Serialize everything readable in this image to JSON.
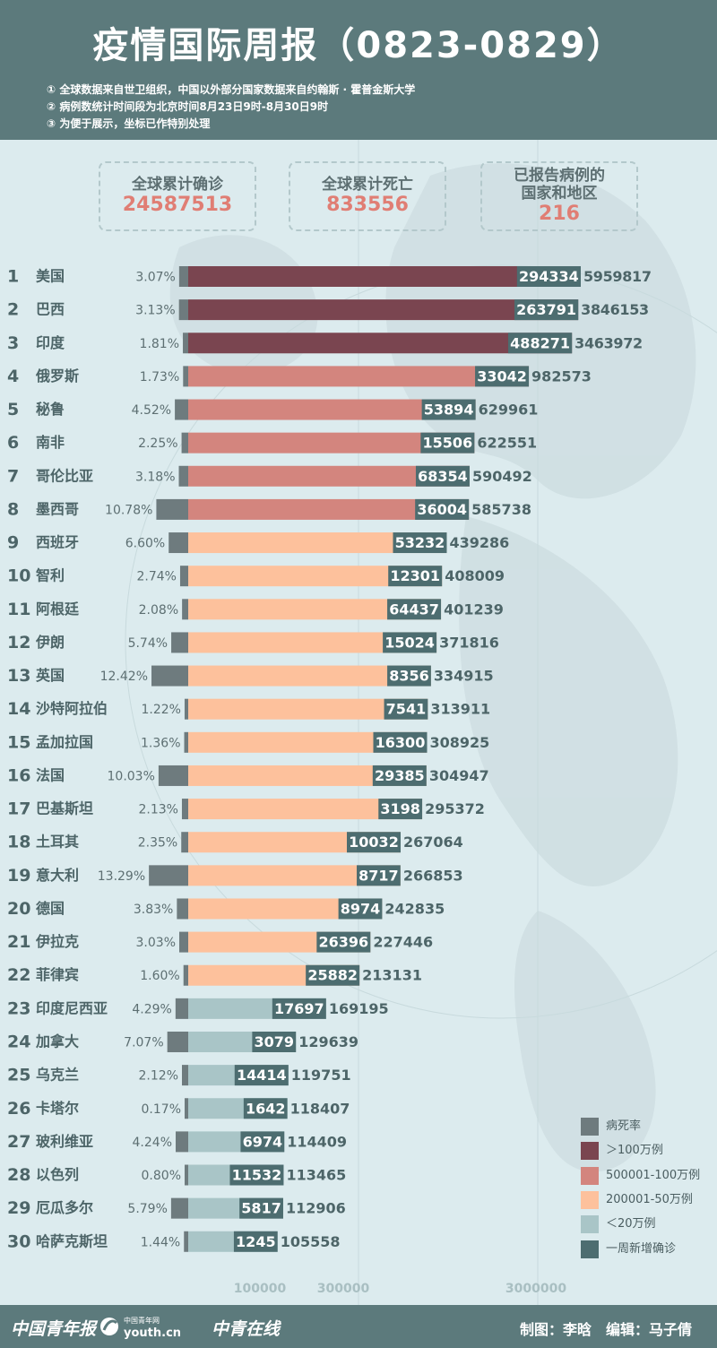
{
  "title": "疫情国际周报（0823-0829）",
  "notes": [
    "① 全球数据来自世卫组织，中国以外部分国家数据来自约翰斯 · 霍普金斯大学",
    "② 病例数统计时间段为北京时间8月23日9时-8月30日9时",
    "③ 为便于展示，坐标已作特别处理"
  ],
  "stats": [
    {
      "label": "全球累计确诊",
      "value": "24587513"
    },
    {
      "label": "全球累计死亡",
      "value": "833556"
    },
    {
      "label": "已报告病例的国家和地区",
      "label_lines": [
        "已报告病例的",
        "国家和地区"
      ],
      "value": "216"
    }
  ],
  "colors": {
    "header": "#5c7a7c",
    "death_rate": "#6e7b7e",
    "tier_over_1m": "#7a4550",
    "tier_500k_1m": "#d3857e",
    "tier_200k_500k": "#fdc19c",
    "tier_under_200k": "#a9c5c7",
    "weekly_new": "#4d6d70",
    "number_text": "#4d6568",
    "stat_value": "#e07e74"
  },
  "chart_data": {
    "type": "bar",
    "title": "",
    "xscale": "piecewise-linear",
    "xticks": [
      100000,
      300000,
      3000000
    ],
    "xtick_labels": [
      "100000",
      "300000",
      "3000000"
    ],
    "countries": [
      {
        "rank": "1",
        "name": "美国",
        "death_rate": "3.07%",
        "weekly_new": 294334,
        "total": 5959817,
        "tier": "tier_over_1m"
      },
      {
        "rank": "2",
        "name": "巴西",
        "death_rate": "3.13%",
        "weekly_new": 263791,
        "total": 3846153,
        "tier": "tier_over_1m"
      },
      {
        "rank": "3",
        "name": "印度",
        "death_rate": "1.81%",
        "weekly_new": 488271,
        "total": 3463972,
        "tier": "tier_over_1m"
      },
      {
        "rank": "4",
        "name": "俄罗斯",
        "death_rate": "1.73%",
        "weekly_new": 33042,
        "total": 982573,
        "tier": "tier_500k_1m"
      },
      {
        "rank": "5",
        "name": "秘鲁",
        "death_rate": "4.52%",
        "weekly_new": 53894,
        "total": 629961,
        "tier": "tier_500k_1m"
      },
      {
        "rank": "6",
        "name": "南非",
        "death_rate": "2.25%",
        "weekly_new": 15506,
        "total": 622551,
        "tier": "tier_500k_1m"
      },
      {
        "rank": "7",
        "name": "哥伦比亚",
        "death_rate": "3.18%",
        "weekly_new": 68354,
        "total": 590492,
        "tier": "tier_500k_1m"
      },
      {
        "rank": "8",
        "name": "墨西哥",
        "death_rate": "10.78%",
        "weekly_new": 36004,
        "total": 585738,
        "tier": "tier_500k_1m"
      },
      {
        "rank": "9",
        "name": "西班牙",
        "death_rate": "6.60%",
        "weekly_new": 53232,
        "total": 439286,
        "tier": "tier_200k_500k"
      },
      {
        "rank": "10",
        "name": "智利",
        "death_rate": "2.74%",
        "weekly_new": 12301,
        "total": 408009,
        "tier": "tier_200k_500k"
      },
      {
        "rank": "11",
        "name": "阿根廷",
        "death_rate": "2.08%",
        "weekly_new": 64437,
        "total": 401239,
        "tier": "tier_200k_500k"
      },
      {
        "rank": "12",
        "name": "伊朗",
        "death_rate": "5.74%",
        "weekly_new": 15024,
        "total": 371816,
        "tier": "tier_200k_500k"
      },
      {
        "rank": "13",
        "name": "英国",
        "death_rate": "12.42%",
        "weekly_new": 8356,
        "total": 334915,
        "tier": "tier_200k_500k"
      },
      {
        "rank": "14",
        "name": "沙特阿拉伯",
        "death_rate": "1.22%",
        "weekly_new": 7541,
        "total": 313911,
        "tier": "tier_200k_500k"
      },
      {
        "rank": "15",
        "name": "孟加拉国",
        "death_rate": "1.36%",
        "weekly_new": 16300,
        "total": 308925,
        "tier": "tier_200k_500k"
      },
      {
        "rank": "16",
        "name": "法国",
        "death_rate": "10.03%",
        "weekly_new": 29385,
        "total": 304947,
        "tier": "tier_200k_500k"
      },
      {
        "rank": "17",
        "name": "巴基斯坦",
        "death_rate": "2.13%",
        "weekly_new": 3198,
        "total": 295372,
        "tier": "tier_200k_500k"
      },
      {
        "rank": "18",
        "name": "土耳其",
        "death_rate": "2.35%",
        "weekly_new": 10032,
        "total": 267064,
        "tier": "tier_200k_500k"
      },
      {
        "rank": "19",
        "name": "意大利",
        "death_rate": "13.29%",
        "weekly_new": 8717,
        "total": 266853,
        "tier": "tier_200k_500k"
      },
      {
        "rank": "20",
        "name": "德国",
        "death_rate": "3.83%",
        "weekly_new": 8974,
        "total": 242835,
        "tier": "tier_200k_500k"
      },
      {
        "rank": "21",
        "name": "伊拉克",
        "death_rate": "3.03%",
        "weekly_new": 26396,
        "total": 227446,
        "tier": "tier_200k_500k"
      },
      {
        "rank": "22",
        "name": "菲律宾",
        "death_rate": "1.60%",
        "weekly_new": 25882,
        "total": 213131,
        "tier": "tier_200k_500k"
      },
      {
        "rank": "23",
        "name": "印度尼西亚",
        "death_rate": "4.29%",
        "weekly_new": 17697,
        "total": 169195,
        "tier": "tier_under_200k"
      },
      {
        "rank": "24",
        "name": "加拿大",
        "death_rate": "7.07%",
        "weekly_new": 3079,
        "total": 129639,
        "tier": "tier_under_200k"
      },
      {
        "rank": "25",
        "name": "乌克兰",
        "death_rate": "2.12%",
        "weekly_new": 14414,
        "total": 119751,
        "tier": "tier_under_200k"
      },
      {
        "rank": "26",
        "name": "卡塔尔",
        "death_rate": "0.17%",
        "weekly_new": 1642,
        "total": 118407,
        "tier": "tier_under_200k"
      },
      {
        "rank": "27",
        "name": "玻利维亚",
        "death_rate": "4.24%",
        "weekly_new": 6974,
        "total": 114409,
        "tier": "tier_under_200k"
      },
      {
        "rank": "28",
        "name": "以色列",
        "death_rate": "0.80%",
        "weekly_new": 11532,
        "total": 113465,
        "tier": "tier_under_200k"
      },
      {
        "rank": "29",
        "name": "厄瓜多尔",
        "death_rate": "5.79%",
        "weekly_new": 5817,
        "total": 112906,
        "tier": "tier_under_200k"
      },
      {
        "rank": "30",
        "name": "哈萨克斯坦",
        "death_rate": "1.44%",
        "weekly_new": 1245,
        "total": 105558,
        "tier": "tier_under_200k"
      }
    ],
    "legend": [
      {
        "label": "病死率",
        "color_key": "death_rate"
      },
      {
        "label": "＞100万例",
        "color_key": "tier_over_1m"
      },
      {
        "label": "500001-100万例",
        "color_key": "tier_500k_1m"
      },
      {
        "label": "200001-50万例",
        "color_key": "tier_200k_500k"
      },
      {
        "label": "＜20万例",
        "color_key": "tier_under_200k"
      },
      {
        "label": "一周新增确诊",
        "color_key": "weekly_new"
      }
    ]
  },
  "footer": {
    "logo_left": "中国青年报",
    "logo_mid_top": "中国青年网",
    "logo_mid": "youth.cn",
    "logo_right": "中青在线",
    "credit": "制图：李晗　编辑：马子倩"
  }
}
